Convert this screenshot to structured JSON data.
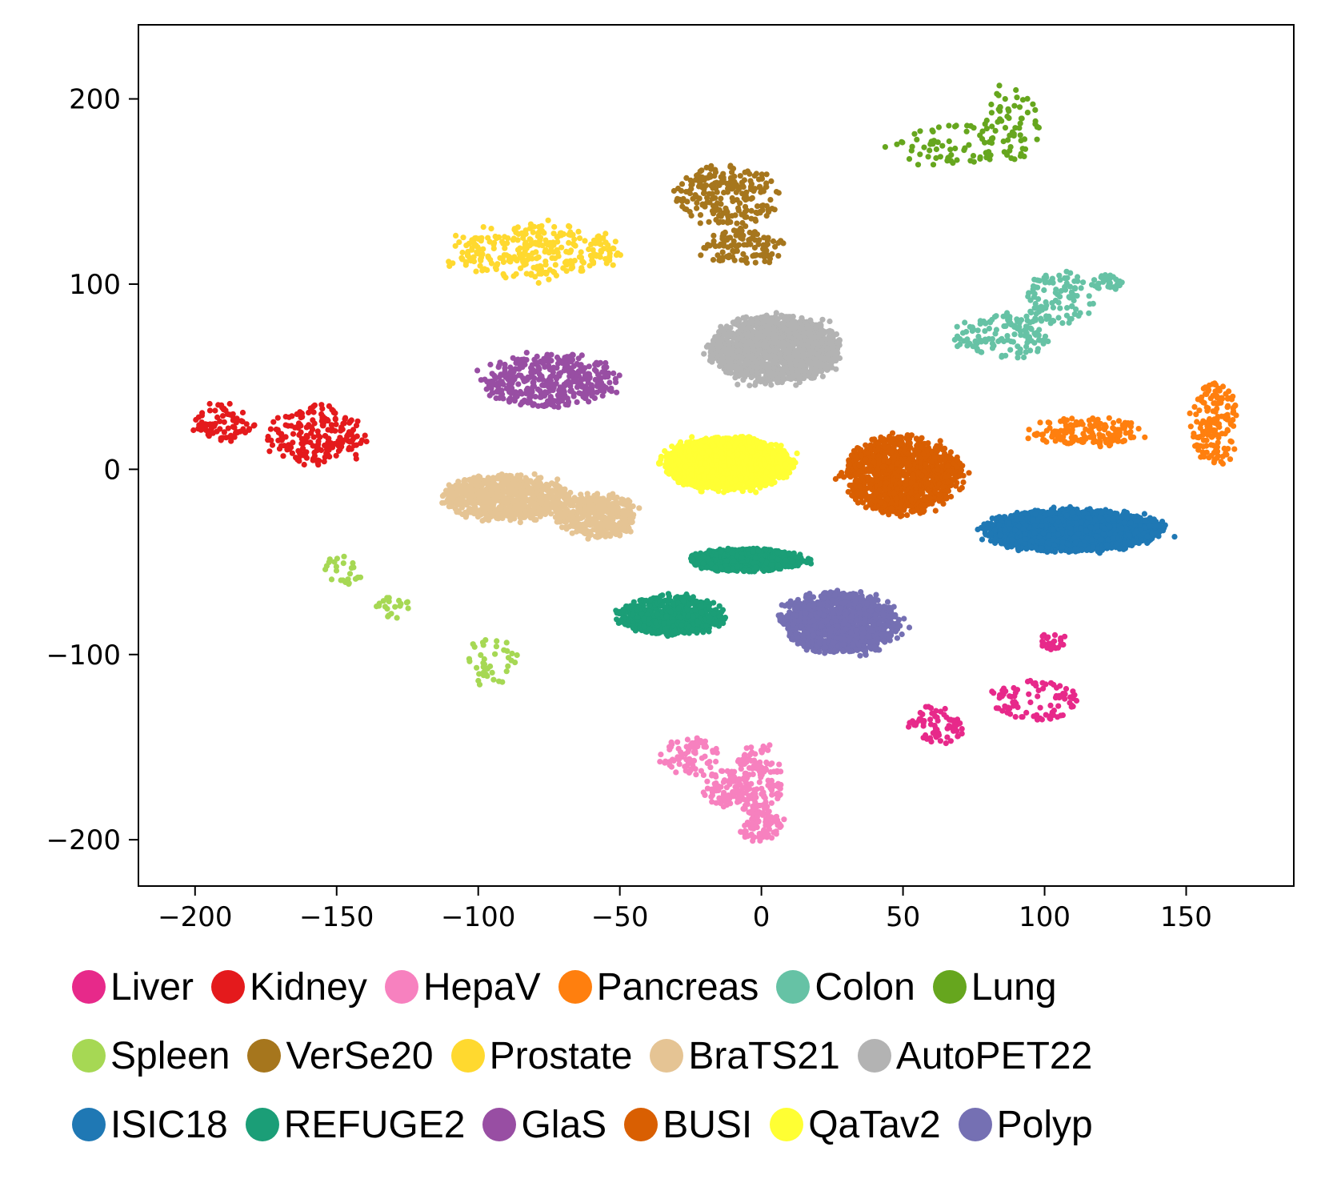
{
  "chart_data": {
    "type": "scatter",
    "title": "",
    "xlabel": "",
    "ylabel": "",
    "xlim": [
      -220,
      188
    ],
    "ylim": [
      -225,
      240
    ],
    "xticks": [
      -200,
      -150,
      -100,
      -50,
      0,
      50,
      100,
      150
    ],
    "yticks": [
      200,
      100,
      0,
      -100,
      -200
    ],
    "xtick_labels": [
      "−200",
      "−150",
      "−100",
      "−50",
      "0",
      "50",
      "100",
      "150"
    ],
    "ytick_labels": [
      "200",
      "100",
      "0",
      "−100",
      "−200"
    ],
    "grid": false,
    "legend_position": "bottom",
    "series": [
      {
        "name": "Liver",
        "color": "#e7298a",
        "clusters": [
          {
            "cx": 103,
            "cy": -93,
            "rx": 5,
            "ry": 5,
            "n": 25
          },
          {
            "cx": 96,
            "cy": -125,
            "rx": 16,
            "ry": 11,
            "n": 90
          },
          {
            "cx": 62,
            "cy": -138,
            "rx": 10,
            "ry": 10,
            "n": 70
          }
        ]
      },
      {
        "name": "Kidney",
        "color": "#e41a1c",
        "clusters": [
          {
            "cx": -190,
            "cy": 25,
            "rx": 10,
            "ry": 10,
            "n": 80
          },
          {
            "cx": -157,
            "cy": 18,
            "rx": 17,
            "ry": 16,
            "n": 200
          }
        ]
      },
      {
        "name": "HepaV",
        "color": "#f781bf",
        "clusters": [
          {
            "cx": -25,
            "cy": -155,
            "rx": 10,
            "ry": 10,
            "n": 80
          },
          {
            "cx": -12,
            "cy": -172,
            "rx": 8,
            "ry": 10,
            "n": 80
          },
          {
            "cx": -1,
            "cy": -168,
            "rx": 8,
            "ry": 20,
            "n": 140
          },
          {
            "cx": 0,
            "cy": -192,
            "rx": 8,
            "ry": 9,
            "n": 90
          }
        ]
      },
      {
        "name": "Pancreas",
        "color": "#ff7f0e",
        "clusters": [
          {
            "cx": 160,
            "cy": 25,
            "rx": 8,
            "ry": 22,
            "n": 150
          },
          {
            "cx": 115,
            "cy": 20,
            "rx": 20,
            "ry": 8,
            "n": 150
          }
        ]
      },
      {
        "name": "Colon",
        "color": "#66c2a5",
        "clusters": [
          {
            "cx": 85,
            "cy": 72,
            "rx": 16,
            "ry": 12,
            "n": 130
          },
          {
            "cx": 105,
            "cy": 92,
            "rx": 12,
            "ry": 14,
            "n": 100
          },
          {
            "cx": 122,
            "cy": 101,
            "rx": 6,
            "ry": 4,
            "n": 30
          }
        ]
      },
      {
        "name": "Lung",
        "color": "#66a61e",
        "clusters": [
          {
            "cx": 65,
            "cy": 175,
            "rx": 18,
            "ry": 12,
            "n": 60
          },
          {
            "cx": 88,
            "cy": 185,
            "rx": 10,
            "ry": 22,
            "n": 70
          }
        ]
      },
      {
        "name": "Spleen",
        "color": "#a6d854",
        "clusters": [
          {
            "cx": -148,
            "cy": -55,
            "rx": 7,
            "ry": 8,
            "n": 25
          },
          {
            "cx": -130,
            "cy": -75,
            "rx": 6,
            "ry": 6,
            "n": 20
          },
          {
            "cx": -95,
            "cy": -105,
            "rx": 9,
            "ry": 14,
            "n": 40
          }
        ]
      },
      {
        "name": "VerSe20",
        "color": "#a6761d",
        "clusters": [
          {
            "cx": -12,
            "cy": 148,
            "rx": 18,
            "ry": 16,
            "n": 220
          },
          {
            "cx": -7,
            "cy": 120,
            "rx": 14,
            "ry": 10,
            "n": 110
          }
        ]
      },
      {
        "name": "Prostate",
        "color": "#ffd92f",
        "clusters": [
          {
            "cx": -80,
            "cy": 118,
            "rx": 30,
            "ry": 14,
            "n": 300
          }
        ]
      },
      {
        "name": "BraTS21",
        "color": "#e5c494",
        "clusters": [
          {
            "cx": -90,
            "cy": -15,
            "rx": 22,
            "ry": 12,
            "n": 700
          },
          {
            "cx": -58,
            "cy": -25,
            "rx": 14,
            "ry": 12,
            "n": 400
          }
        ]
      },
      {
        "name": "AutoPET22",
        "color": "#b3b3b3",
        "clusters": [
          {
            "cx": 5,
            "cy": 65,
            "rx": 22,
            "ry": 18,
            "n": 1600
          }
        ]
      },
      {
        "name": "ISIC18",
        "color": "#1f78b4",
        "clusters": [
          {
            "cx": 110,
            "cy": -33,
            "rx": 30,
            "ry": 11,
            "n": 2000
          }
        ]
      },
      {
        "name": "REFUGE2",
        "color": "#1b9e77",
        "clusters": [
          {
            "cx": -32,
            "cy": -79,
            "rx": 18,
            "ry": 10,
            "n": 700
          },
          {
            "cx": -5,
            "cy": -49,
            "rx": 20,
            "ry": 6,
            "n": 700
          }
        ]
      },
      {
        "name": "GlaS",
        "color": "#984ea3",
        "clusters": [
          {
            "cx": -75,
            "cy": 48,
            "rx": 24,
            "ry": 14,
            "n": 400
          }
        ]
      },
      {
        "name": "BUSI",
        "color": "#d95f02",
        "clusters": [
          {
            "cx": 50,
            "cy": -3,
            "rx": 20,
            "ry": 20,
            "n": 1200
          }
        ]
      },
      {
        "name": "QaTav2",
        "color": "#ffff33",
        "clusters": [
          {
            "cx": -12,
            "cy": 3,
            "rx": 22,
            "ry": 14,
            "n": 1800
          }
        ]
      },
      {
        "name": "Polyp",
        "color": "#7570b3",
        "clusters": [
          {
            "cx": 28,
            "cy": -83,
            "rx": 20,
            "ry": 16,
            "n": 1200
          }
        ]
      }
    ]
  },
  "legend": {
    "rows": [
      [
        {
          "label": "Liver",
          "color": "#e7298a"
        },
        {
          "label": "Kidney",
          "color": "#e41a1c"
        },
        {
          "label": "HepaV",
          "color": "#f781bf"
        },
        {
          "label": "Pancreas",
          "color": "#ff7f0e"
        },
        {
          "label": "Colon",
          "color": "#66c2a5"
        },
        {
          "label": "Lung",
          "color": "#66a61e"
        }
      ],
      [
        {
          "label": "Spleen",
          "color": "#a6d854"
        },
        {
          "label": "VerSe20",
          "color": "#a6761d"
        },
        {
          "label": "Prostate",
          "color": "#ffd92f"
        },
        {
          "label": "BraTS21",
          "color": "#e5c494"
        },
        {
          "label": "AutoPET22",
          "color": "#b3b3b3"
        }
      ],
      [
        {
          "label": "ISIC18",
          "color": "#1f78b4"
        },
        {
          "label": "REFUGE2",
          "color": "#1b9e77"
        },
        {
          "label": "GlaS",
          "color": "#984ea3"
        },
        {
          "label": "BUSI",
          "color": "#d95f02"
        },
        {
          "label": "QaTav2",
          "color": "#ffff33"
        },
        {
          "label": "Polyp",
          "color": "#7570b3"
        }
      ]
    ]
  }
}
